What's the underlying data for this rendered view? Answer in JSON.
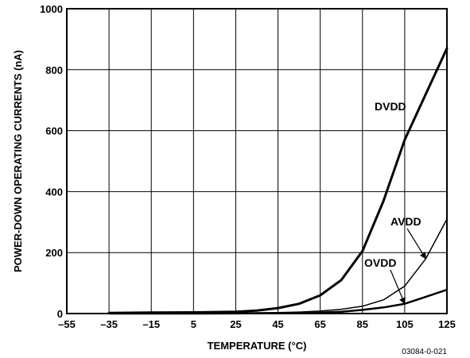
{
  "chart_data": {
    "type": "line",
    "xlabel": "TEMPERATURE (°C)",
    "ylabel": "POWER-DOWN OPERATING CURRENTS (nA)",
    "xlim": [
      -55,
      125
    ],
    "ylim": [
      0,
      1000
    ],
    "x_ticks": [
      -55,
      -35,
      -15,
      5,
      25,
      45,
      65,
      85,
      105,
      125
    ],
    "x_tick_labels": [
      "–55",
      "–35",
      "–15",
      "5",
      "25",
      "45",
      "65",
      "85",
      "105",
      "125"
    ],
    "y_ticks": [
      0,
      200,
      400,
      600,
      800,
      1000
    ],
    "y_tick_labels": [
      "0",
      "200",
      "400",
      "600",
      "800",
      "1000"
    ],
    "grid": true,
    "series": [
      {
        "name": "DVDD",
        "stroke_width": 3,
        "x": [
          -35,
          -15,
          5,
          25,
          35,
          45,
          55,
          65,
          75,
          85,
          95,
          105,
          115,
          125
        ],
        "y": [
          2,
          3,
          4,
          6,
          10,
          18,
          32,
          60,
          110,
          205,
          370,
          570,
          720,
          870
        ]
      },
      {
        "name": "AVDD",
        "stroke_width": 1.5,
        "x": [
          -35,
          5,
          45,
          55,
          65,
          75,
          85,
          95,
          105,
          115,
          125
        ],
        "y": [
          0,
          1,
          3,
          5,
          8,
          14,
          24,
          45,
          90,
          180,
          310
        ]
      },
      {
        "name": "OVDD",
        "stroke_width": 2.5,
        "x": [
          -35,
          5,
          45,
          65,
          75,
          85,
          95,
          105,
          115,
          125
        ],
        "y": [
          0,
          0,
          1,
          3,
          6,
          12,
          20,
          32,
          55,
          78
        ]
      }
    ],
    "annotations": [
      {
        "text": "DVDD",
        "series": "DVDD"
      },
      {
        "text": "AVDD",
        "series": "AVDD"
      },
      {
        "text": "OVDD",
        "series": "OVDD"
      }
    ],
    "figure_id": "03084-0-021"
  }
}
